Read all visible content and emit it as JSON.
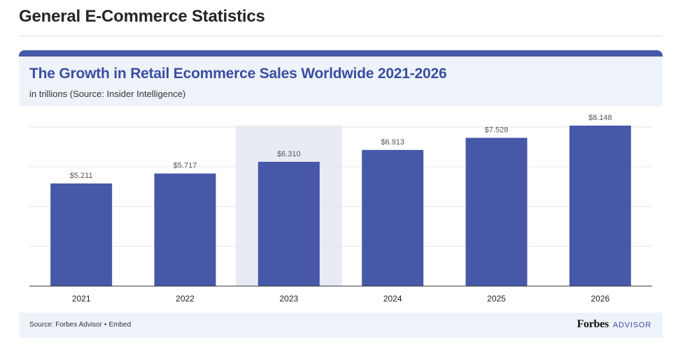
{
  "page": {
    "heading": "General E-Commerce Statistics"
  },
  "chart_data": {
    "type": "bar",
    "title": "The Growth in Retail Ecommerce Sales Worldwide 2021-2026",
    "subtitle": "in trillions (Source: Insider Intelligence)",
    "categories": [
      "2021",
      "2022",
      "2023",
      "2024",
      "2025",
      "2026"
    ],
    "values": [
      5.211,
      5.717,
      6.31,
      6.913,
      7.528,
      8.148
    ],
    "value_labels": [
      "$5.211",
      "$5.717",
      "$6.310",
      "$6.913",
      "$7.528",
      "$8.148"
    ],
    "highlighted_category": "2023",
    "xlabel": "",
    "ylabel": "",
    "ylim": [
      0,
      8.148
    ],
    "grid": true,
    "bar_color": "#4758a8",
    "highlight_color": "#e8ebf4"
  },
  "footer": {
    "source_prefix": "Source:",
    "source_name": "Forbes Advisor",
    "separator": "•",
    "embed_label": "Embed",
    "brand_name": "Forbes",
    "brand_suffix": "ADVISOR"
  }
}
